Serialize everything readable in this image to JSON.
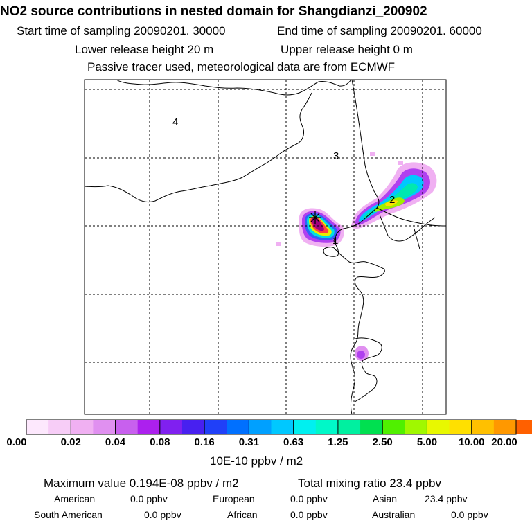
{
  "header": {
    "title": "NO2 source contributions in nested domain for Shangdianzi_200902",
    "start_label": "Start time of sampling 20090201. 30000",
    "end_label": "End time of sampling 20090201. 60000",
    "lower_label": "Lower release height   20 m",
    "upper_label": "Upper release height    0 m",
    "tracer_note": "Passive tracer used, meteorological data are from ECMWF"
  },
  "map": {
    "region_labels": [
      "1",
      "2",
      "3",
      "4"
    ],
    "receptor_marker": "star-marker"
  },
  "colorbar": {
    "ticks": [
      "0.00",
      "0.02",
      "0.04",
      "0.08",
      "0.16",
      "0.31",
      "0.63",
      "1.25",
      "2.50",
      "5.00",
      "10.00",
      "20.00"
    ],
    "unit": "10E-10 ppbv / m2",
    "colors": [
      "#fde8fd",
      "#f7cdf7",
      "#f0b0f2",
      "#e090f0",
      "#c860ee",
      "#ac20ee",
      "#8020f0",
      "#4820f0",
      "#2040f8",
      "#0070ff",
      "#00a0ff",
      "#00c8ff",
      "#00f0f0",
      "#00f8c8",
      "#00f0a0",
      "#00e050",
      "#50f000",
      "#a0f800",
      "#e8f800",
      "#ffe000",
      "#ffc000",
      "#ff9800",
      "#ff6000",
      "#ff2040",
      "#ff0080",
      "#f000a0",
      "#e000b0",
      "#c800b0",
      "#a00090",
      "#700060"
    ]
  },
  "footer": {
    "max_value": "Maximum value  0.194E-08 ppbv / m2",
    "total_mixing": "Total mixing ratio      23.4 ppbv",
    "american_label": "American",
    "american_value": "0.0 ppbv",
    "european_label": "European",
    "european_value": "0.0 ppbv",
    "asian_label": "Asian",
    "asian_value": "23.4 ppbv",
    "south_american_label": "South American",
    "south_american_value": "0.0 ppbv",
    "african_label": "African",
    "african_value": "0.0 ppbv",
    "australian_label": "Australian",
    "australian_value": "0.0 ppbv"
  }
}
